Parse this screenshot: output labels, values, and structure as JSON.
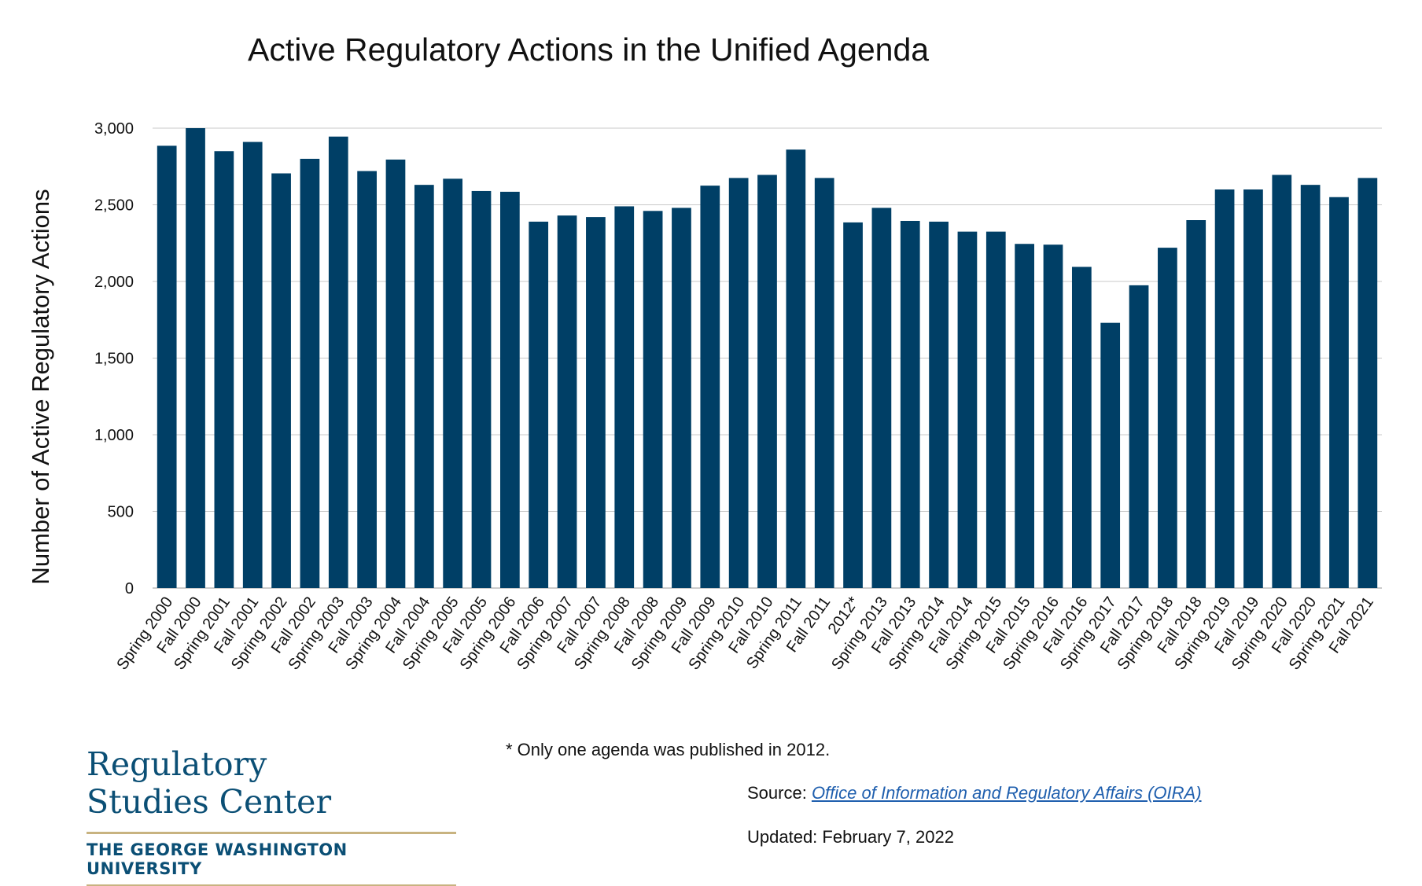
{
  "chart_data": {
    "type": "bar",
    "title": "Active Regulatory Actions in the Unified Agenda",
    "xlabel": "",
    "ylabel": "Number of Active Regulatory Actions",
    "ylim": [
      0,
      3000
    ],
    "yticks": [
      0,
      500,
      1000,
      1500,
      2000,
      2500,
      3000
    ],
    "ytick_labels": [
      "0",
      "500",
      "1,000",
      "1,500",
      "2,000",
      "2,500",
      "3,000"
    ],
    "grid": true,
    "bar_color": "#003f66",
    "categories": [
      "Spring 2000",
      "Fall 2000",
      "Spring 2001",
      "Fall 2001",
      "Spring 2002",
      "Fall 2002",
      "Spring 2003",
      "Fall 2003",
      "Spring 2004",
      "Fall 2004",
      "Spring 2005",
      "Fall 2005",
      "Spring 2006",
      "Fall 2006",
      "Spring 2007",
      "Fall 2007",
      "Spring 2008",
      "Fall 2008",
      "Spring 2009",
      "Fall 2009",
      "Spring 2010",
      "Fall 2010",
      "Spring 2011",
      "Fall 2011",
      "2012*",
      "Spring 2013",
      "Fall 2013",
      "Spring 2014",
      "Fall 2014",
      "Spring 2015",
      "Fall 2015",
      "Spring 2016",
      "Fall 2016",
      "Spring 2017",
      "Fall 2017",
      "Spring 2018",
      "Fall 2018",
      "Spring 2019",
      "Fall 2019",
      "Spring 2020",
      "Fall 2020",
      "Spring 2021",
      "Fall 2021"
    ],
    "values": [
      2885,
      3000,
      2850,
      2910,
      2705,
      2800,
      2945,
      2720,
      2795,
      2630,
      2670,
      2590,
      2585,
      2390,
      2430,
      2420,
      2490,
      2460,
      2480,
      2625,
      2675,
      2695,
      2860,
      2675,
      2385,
      2480,
      2395,
      2390,
      2325,
      2325,
      2245,
      2240,
      2095,
      1730,
      1975,
      2220,
      2400,
      2600,
      2600,
      2695,
      2630,
      2550,
      2675
    ]
  },
  "footnote": "* Only one agenda was published in 2012.",
  "source": {
    "label": "Source: ",
    "link_text": "Office of Information and Regulatory Affairs (OIRA)"
  },
  "updated": "Updated: February 7, 2022",
  "logo": {
    "line1": "Regulatory",
    "line2": "Studies Center",
    "university": "THE GEORGE WASHINGTON UNIVERSITY"
  }
}
